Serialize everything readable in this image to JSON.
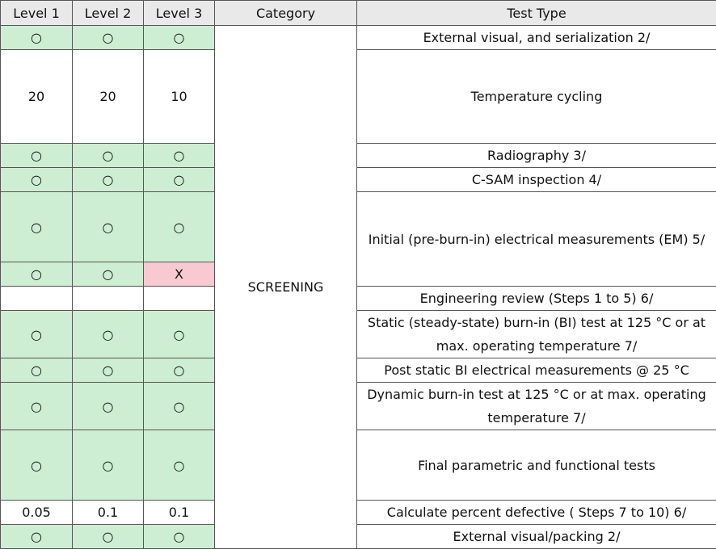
{
  "headers": [
    "Level 1",
    "Level 2",
    "Level 3",
    "Category",
    "Test Type"
  ],
  "category": "SCREENING",
  "rows": [
    {
      "l1": "○",
      "l2": "○",
      "l3": "○",
      "test": "External visual, and serialization 2/"
    },
    {
      "l1": "20",
      "l2": "20",
      "l3": "10",
      "test": "Temperature cycling"
    },
    {
      "l1": "○",
      "l2": "○",
      "l3": "○",
      "test": "Radiography 3/"
    },
    {
      "l1": "○",
      "l2": "○",
      "l3": "○",
      "test": "C-SAM inspection 4/"
    },
    {
      "l1": "○",
      "l2": "○",
      "l3": "○",
      "test": "Initial (pre-burn-in) electrical measurements (EM) 5/"
    },
    {
      "l1": "○",
      "l2": "○",
      "l3": "X",
      "test": ""
    },
    {
      "l1": "",
      "l2": "",
      "l3": "",
      "test": "Engineering review (Steps 1 to 5) 6/"
    },
    {
      "l1": "○",
      "l2": "○",
      "l3": "○",
      "test": "Static (steady-state) burn-in (BI) test at 125 °C or at max. operating temperature 7/"
    },
    {
      "l1": "○",
      "l2": "○",
      "l3": "○",
      "test": "Post static BI electrical measurements @ 25 °C"
    },
    {
      "l1": "○",
      "l2": "○",
      "l3": "○",
      "test": "Dynamic burn-in test at 125 °C or at max. operating temperature 7/"
    },
    {
      "l1": "○",
      "l2": "○",
      "l3": "○",
      "test": "Final parametric and functional tests"
    },
    {
      "l1": "0.05",
      "l2": "0.1",
      "l3": "0.1",
      "test": "Calculate percent defective ( Steps 7 to 10) 6/"
    },
    {
      "l1": "○",
      "l2": "○",
      "l3": "○",
      "test": "External visual/packing 2/"
    }
  ],
  "colors": {
    "green": "#cdeed3",
    "pink": "#f8c9d1",
    "header": "#e9e9e9",
    "border": "#555555"
  }
}
